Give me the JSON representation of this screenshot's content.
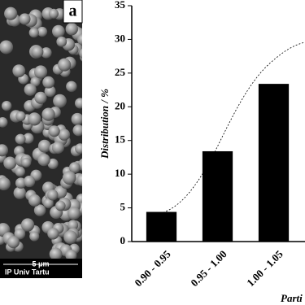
{
  "image_labels": {
    "panel": "a",
    "scale": "5 μm",
    "credit": "IP Univ Tartu"
  },
  "chart_data": {
    "type": "bar",
    "ylabel": "Distribution / %",
    "xlabel": "Parti",
    "categories": [
      "0.90 - 0.95",
      "0.95 - 1.00",
      "1.00 - 1.05"
    ],
    "values": [
      4.4,
      13.4,
      23.4
    ],
    "color": "#000000",
    "ylim": [
      0,
      35
    ],
    "yticks": [
      0,
      5,
      10,
      15,
      20,
      25,
      30,
      35
    ],
    "grid": false
  }
}
